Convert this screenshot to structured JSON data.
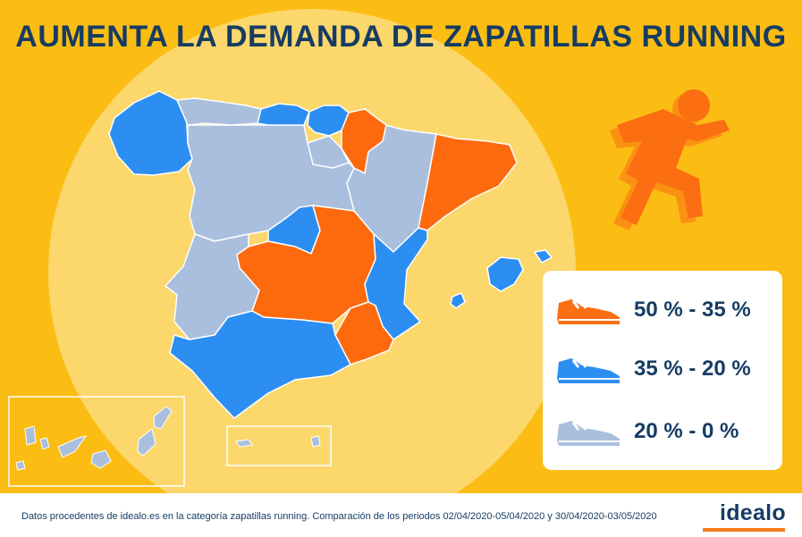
{
  "title": "AUMENTA LA DEMANDA DE ZAPATILLAS RUNNING",
  "colors": {
    "background": "#fbbd13",
    "highlight_circle": "#fcd76c",
    "high": "#fd6a0d",
    "medium": "#2d8ef2",
    "low": "#a9bfdd",
    "text": "#163c63",
    "accent": "#f77c1e"
  },
  "legend": {
    "items": [
      {
        "label": "50 % - 35 %",
        "level": "high",
        "icon": "running-shoe-icon"
      },
      {
        "label": "35 % - 20 %",
        "level": "medium",
        "icon": "running-shoe-icon"
      },
      {
        "label": "20 % - 0 %",
        "level": "low",
        "icon": "running-shoe-icon"
      }
    ]
  },
  "regions": [
    {
      "name": "Galicia",
      "level": "medium"
    },
    {
      "name": "Asturias",
      "level": "low"
    },
    {
      "name": "Cantabria",
      "level": "medium"
    },
    {
      "name": "País Vasco",
      "level": "medium"
    },
    {
      "name": "Navarra",
      "level": "high"
    },
    {
      "name": "La Rioja",
      "level": "low"
    },
    {
      "name": "Aragón",
      "level": "low"
    },
    {
      "name": "Cataluña",
      "level": "high"
    },
    {
      "name": "Castilla y León",
      "level": "low"
    },
    {
      "name": "Madrid",
      "level": "medium"
    },
    {
      "name": "Castilla-La Mancha",
      "level": "high"
    },
    {
      "name": "Extremadura",
      "level": "low"
    },
    {
      "name": "Comunidad Valenciana",
      "level": "medium"
    },
    {
      "name": "Región de Murcia",
      "level": "high"
    },
    {
      "name": "Andalucía",
      "level": "medium"
    },
    {
      "name": "Islas Baleares",
      "level": "medium"
    },
    {
      "name": "Canarias",
      "level": "low"
    },
    {
      "name": "Ceuta y Melilla",
      "level": "low"
    }
  ],
  "footer": {
    "source": "Datos procedentes de idealo.es en la categoría zapatillas running. Comparación de los periodos 02/04/2020-05/04/2020 y 30/04/2020-03/05/2020",
    "logo": "idealo"
  }
}
